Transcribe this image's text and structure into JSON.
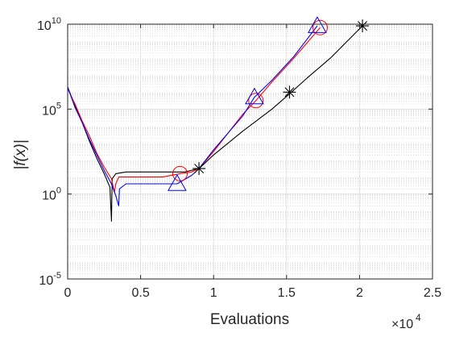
{
  "chart_data": {
    "type": "line",
    "xlabel": "Evaluations",
    "ylabel": "|f(x)|",
    "x_multiplier": "×10^4",
    "x_multiplier_base": "×10",
    "x_multiplier_exp": "4",
    "xlim": [
      0,
      25000
    ],
    "ylim_log10": [
      -5,
      10
    ],
    "yscale": "log",
    "grid": true,
    "minor_grid": true,
    "x_ticks": [
      {
        "value": 0,
        "label": "0"
      },
      {
        "value": 5000,
        "label": "0.5"
      },
      {
        "value": 10000,
        "label": "1"
      },
      {
        "value": 15000,
        "label": "1.5"
      },
      {
        "value": 20000,
        "label": "2"
      },
      {
        "value": 25000,
        "label": "2.5"
      }
    ],
    "y_ticks": [
      {
        "exp": -5,
        "base": "10",
        "sup": "-5"
      },
      {
        "exp": 0,
        "base": "10",
        "sup": "0"
      },
      {
        "exp": 5,
        "base": "10",
        "sup": "5"
      },
      {
        "exp": 10,
        "base": "10",
        "sup": "10"
      }
    ],
    "series": [
      {
        "color": "#000000",
        "marker": "asterisk",
        "points": [
          [
            0,
            6.3
          ],
          [
            500,
            5.2
          ],
          [
            1000,
            4.2
          ],
          [
            1500,
            3.1
          ],
          [
            2000,
            2.1
          ],
          [
            2500,
            1.2
          ],
          [
            2900,
            0.4
          ],
          [
            3000,
            -1.6
          ],
          [
            3050,
            0.9
          ],
          [
            3300,
            1.2
          ],
          [
            4000,
            1.3
          ],
          [
            6000,
            1.3
          ],
          [
            8000,
            1.3
          ],
          [
            9000,
            1.5
          ],
          [
            10000,
            2.3
          ],
          [
            12000,
            3.7
          ],
          [
            14000,
            5.0
          ],
          [
            15200,
            5.9
          ],
          [
            16500,
            6.9
          ],
          [
            18000,
            8.0
          ],
          [
            20200,
            9.9
          ]
        ],
        "markers": [
          [
            9000,
            1.5
          ],
          [
            15200,
            6.0
          ],
          [
            20200,
            9.9
          ]
        ]
      },
      {
        "color": "#ff0000",
        "marker": "circle",
        "points": [
          [
            0,
            6.2
          ],
          [
            500,
            5.3
          ],
          [
            1000,
            4.3
          ],
          [
            1500,
            3.4
          ],
          [
            2000,
            2.4
          ],
          [
            2500,
            1.6
          ],
          [
            3000,
            0.9
          ],
          [
            3200,
            0.1
          ],
          [
            3300,
            0.6
          ],
          [
            3500,
            1.0
          ],
          [
            4500,
            1.0
          ],
          [
            6500,
            1.0
          ],
          [
            7700,
            1.2
          ],
          [
            8500,
            1.3
          ],
          [
            9000,
            1.5
          ],
          [
            10000,
            2.5
          ],
          [
            11000,
            3.6
          ],
          [
            12000,
            4.7
          ],
          [
            12900,
            5.5
          ],
          [
            14000,
            6.6
          ],
          [
            15500,
            8.0
          ],
          [
            17300,
            9.8
          ]
        ],
        "markers": [
          [
            7700,
            1.2
          ],
          [
            12900,
            5.5
          ],
          [
            17300,
            9.8
          ]
        ]
      },
      {
        "color": "#0000ff",
        "marker": "triangle",
        "points": [
          [
            0,
            6.3
          ],
          [
            500,
            5.1
          ],
          [
            1000,
            4.2
          ],
          [
            1500,
            3.2
          ],
          [
            2000,
            2.3
          ],
          [
            2500,
            1.4
          ],
          [
            3000,
            0.6
          ],
          [
            3300,
            -0.1
          ],
          [
            3500,
            -0.7
          ],
          [
            3550,
            0.3
          ],
          [
            4000,
            0.6
          ],
          [
            5500,
            0.6
          ],
          [
            7500,
            0.6
          ],
          [
            8500,
            1.1
          ],
          [
            9000,
            1.5
          ],
          [
            10000,
            2.6
          ],
          [
            11000,
            3.6
          ],
          [
            12000,
            4.6
          ],
          [
            12800,
            5.7
          ],
          [
            14000,
            6.7
          ],
          [
            15500,
            8.1
          ],
          [
            17100,
            9.9
          ]
        ],
        "markers": [
          [
            7500,
            0.6
          ],
          [
            12800,
            5.7
          ],
          [
            17100,
            9.9
          ]
        ]
      }
    ]
  }
}
